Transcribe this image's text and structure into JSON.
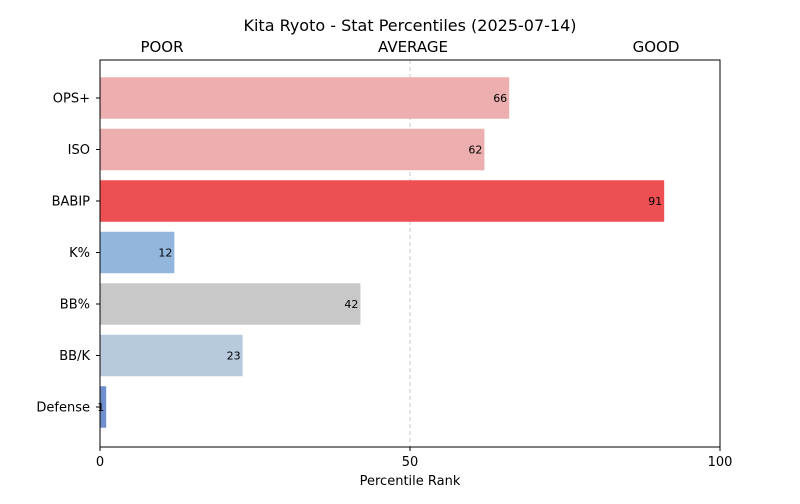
{
  "chart_data": {
    "type": "bar",
    "orientation": "horizontal",
    "title": "Kita Ryoto - Stat Percentiles (2025-07-14)",
    "xlabel": "Percentile Rank",
    "ylabel": "",
    "xlim": [
      0,
      100
    ],
    "xticks": [
      0,
      50,
      100
    ],
    "zone_labels": [
      "POOR",
      "AVERAGE",
      "GOOD"
    ],
    "reference_line": 50,
    "categories": [
      "OPS+",
      "ISO",
      "BABIP",
      "K%",
      "BB%",
      "BB/K",
      "Defense"
    ],
    "values": [
      66,
      62,
      91,
      12,
      42,
      23,
      1
    ],
    "colors": [
      "#ecaeae",
      "#ecaeae",
      "#ee4f52",
      "#93b6dc",
      "#c8c8c8",
      "#b6c9dd",
      "#6f8fcf"
    ],
    "grid": false,
    "legend": "none"
  }
}
